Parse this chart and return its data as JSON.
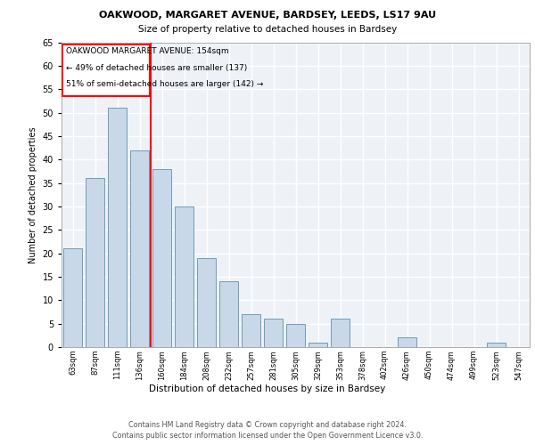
{
  "title1": "OAKWOOD, MARGARET AVENUE, BARDSEY, LEEDS, LS17 9AU",
  "title2": "Size of property relative to detached houses in Bardsey",
  "xlabel": "Distribution of detached houses by size in Bardsey",
  "ylabel": "Number of detached properties",
  "categories": [
    "63sqm",
    "87sqm",
    "111sqm",
    "136sqm",
    "160sqm",
    "184sqm",
    "208sqm",
    "232sqm",
    "257sqm",
    "281sqm",
    "305sqm",
    "329sqm",
    "353sqm",
    "378sqm",
    "402sqm",
    "426sqm",
    "450sqm",
    "474sqm",
    "499sqm",
    "523sqm",
    "547sqm"
  ],
  "values": [
    21,
    36,
    51,
    42,
    38,
    30,
    19,
    14,
    7,
    6,
    5,
    1,
    6,
    0,
    0,
    2,
    0,
    0,
    0,
    1,
    0
  ],
  "bar_color": "#c8d8e8",
  "bar_edge_color": "#6090b0",
  "vline_x": 3.5,
  "vline_color": "red",
  "annotation_line1": "OAKWOOD MARGARET AVENUE: 154sqm",
  "annotation_line2": "← 49% of detached houses are smaller (137)",
  "annotation_line3": "51% of semi-detached houses are larger (142) →",
  "ylim": [
    0,
    65
  ],
  "yticks": [
    0,
    5,
    10,
    15,
    20,
    25,
    30,
    35,
    40,
    45,
    50,
    55,
    60,
    65
  ],
  "footnote1": "Contains HM Land Registry data © Crown copyright and database right 2024.",
  "footnote2": "Contains public sector information licensed under the Open Government Licence v3.0.",
  "bg_color": "#eef2f7",
  "grid_color": "#ffffff"
}
